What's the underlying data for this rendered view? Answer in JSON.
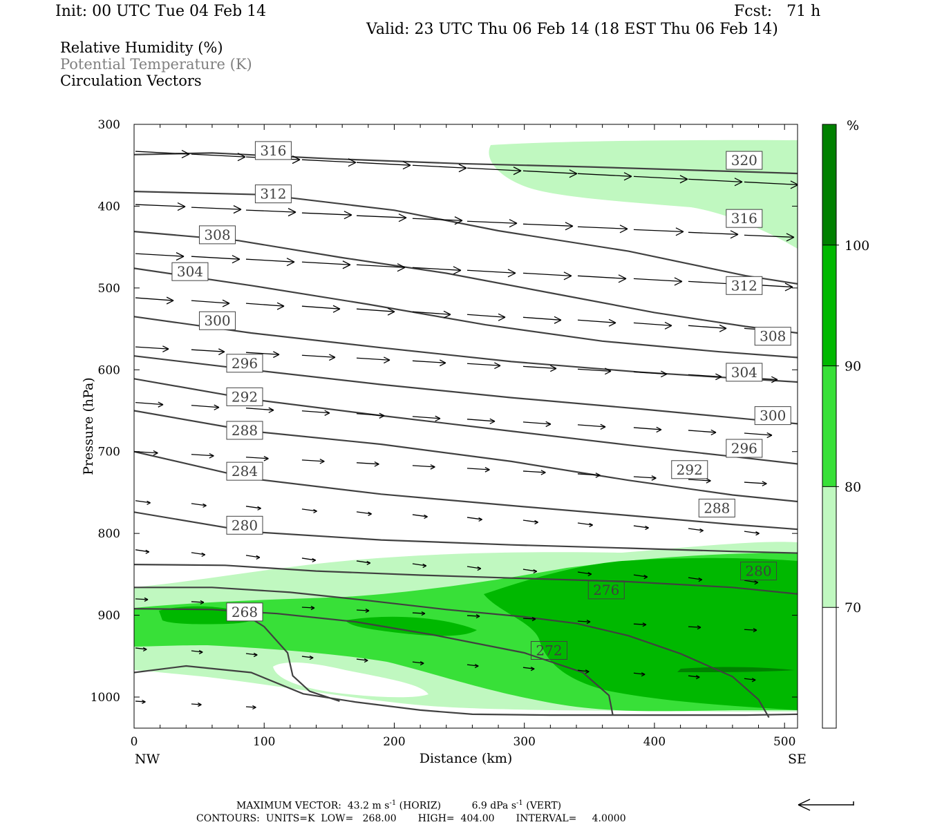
{
  "header": {
    "init": "Init: 00 UTC Tue 04 Feb 14",
    "fcst": "Fcst:   71 h",
    "valid": "Valid: 23 UTC Thu 06 Feb 14 (18 EST Thu 06 Feb 14)"
  },
  "legend": {
    "rh": "Relative Humidity (%)",
    "theta": "Potential Temperature (K)",
    "vectors": "Circulation Vectors"
  },
  "footer": {
    "maxvec_label": "MAXIMUM VECTOR:",
    "maxvec_h_val": "43.2 m s",
    "maxvec_h_sup": "-1",
    "maxvec_h_tag": "(HORIZ)",
    "maxvec_v_val": "6.9 dPa s",
    "maxvec_v_sup": "-1",
    "maxvec_v_tag": "(VERT)",
    "contours": "CONTOURS:  UNITS=K  LOW=   268.00       HIGH=  404.00       INTERVAL=     4.0000"
  },
  "colors": {
    "rh70": "#c0f8c0",
    "rh80": "#38e038",
    "rh90": "#00b800",
    "rh100": "#008000",
    "contour": "#404040",
    "grey_text": "#808080"
  },
  "chart_data": {
    "type": "cross-section",
    "xlabel": "Distance (km)",
    "ylabel": "Pressure (hPa)",
    "xlim": [
      0,
      510
    ],
    "ylim": [
      1038,
      300
    ],
    "x_ticks": [
      0,
      100,
      200,
      300,
      400,
      500
    ],
    "y_ticks": [
      300,
      400,
      500,
      600,
      700,
      800,
      900,
      1000
    ],
    "x_end_labels": {
      "left": "NW",
      "right": "SE"
    },
    "colorbar": {
      "unit": "%",
      "levels": [
        70,
        80,
        90,
        100
      ],
      "colors": [
        "#ffffff",
        "#c0f8c0",
        "#38e038",
        "#00b800",
        "#008000"
      ]
    },
    "contour_labels": [
      {
        "value": "316",
        "x": 107,
        "p": 332
      },
      {
        "value": "312",
        "x": 107,
        "p": 385
      },
      {
        "value": "308",
        "x": 64,
        "p": 435
      },
      {
        "value": "304",
        "x": 43,
        "p": 480
      },
      {
        "value": "300",
        "x": 64,
        "p": 540
      },
      {
        "value": "296",
        "x": 85,
        "p": 592
      },
      {
        "value": "292",
        "x": 85,
        "p": 633
      },
      {
        "value": "288",
        "x": 85,
        "p": 674
      },
      {
        "value": "284",
        "x": 85,
        "p": 724
      },
      {
        "value": "280",
        "x": 85,
        "p": 790
      },
      {
        "value": "268",
        "x": 85,
        "p": 896
      },
      {
        "value": "320",
        "x": 469,
        "p": 344
      },
      {
        "value": "316",
        "x": 469,
        "p": 415
      },
      {
        "value": "312",
        "x": 469,
        "p": 497
      },
      {
        "value": "308",
        "x": 491,
        "p": 559
      },
      {
        "value": "304",
        "x": 469,
        "p": 603
      },
      {
        "value": "300",
        "x": 491,
        "p": 656
      },
      {
        "value": "296",
        "x": 469,
        "p": 696
      },
      {
        "value": "292",
        "x": 427,
        "p": 722
      },
      {
        "value": "288",
        "x": 448,
        "p": 769
      },
      {
        "value": "280",
        "x": 480,
        "p": 846
      },
      {
        "value": "276",
        "x": 363,
        "p": 869
      },
      {
        "value": "272",
        "x": 319,
        "p": 943
      }
    ],
    "theta_contours": [
      {
        "value": 320,
        "points": [
          [
            0,
            337
          ],
          [
            60,
            335
          ],
          [
            150,
            342
          ],
          [
            250,
            348
          ],
          [
            350,
            352
          ],
          [
            450,
            357
          ],
          [
            510,
            360
          ]
        ]
      },
      {
        "value": 316,
        "points": [
          [
            0,
            382
          ],
          [
            100,
            386
          ],
          [
            200,
            405
          ],
          [
            280,
            430
          ],
          [
            380,
            455
          ],
          [
            470,
            485
          ],
          [
            510,
            495
          ]
        ]
      },
      {
        "value": 312,
        "points": [
          [
            0,
            431
          ],
          [
            80,
            442
          ],
          [
            160,
            463
          ],
          [
            240,
            482
          ],
          [
            320,
            506
          ],
          [
            400,
            530
          ],
          [
            470,
            547
          ],
          [
            510,
            555
          ]
        ]
      },
      {
        "value": 308,
        "points": [
          [
            0,
            476
          ],
          [
            90,
            497
          ],
          [
            180,
            520
          ],
          [
            270,
            545
          ],
          [
            360,
            565
          ],
          [
            450,
            578
          ],
          [
            510,
            585
          ]
        ]
      },
      {
        "value": 304,
        "points": [
          [
            0,
            535
          ],
          [
            90,
            555
          ],
          [
            190,
            573
          ],
          [
            290,
            590
          ],
          [
            390,
            603
          ],
          [
            470,
            611
          ],
          [
            510,
            615
          ]
        ]
      },
      {
        "value": 300,
        "points": [
          [
            0,
            583
          ],
          [
            90,
            600
          ],
          [
            190,
            618
          ],
          [
            290,
            634
          ],
          [
            390,
            648
          ],
          [
            470,
            660
          ],
          [
            510,
            666
          ]
        ]
      },
      {
        "value": 296,
        "points": [
          [
            0,
            611
          ],
          [
            90,
            636
          ],
          [
            190,
            656
          ],
          [
            290,
            675
          ],
          [
            380,
            692
          ],
          [
            460,
            706
          ],
          [
            510,
            715
          ]
        ]
      },
      {
        "value": 292,
        "points": [
          [
            0,
            650
          ],
          [
            90,
            675
          ],
          [
            190,
            691
          ],
          [
            290,
            712
          ],
          [
            380,
            735
          ],
          [
            460,
            753
          ],
          [
            510,
            761
          ]
        ]
      },
      {
        "value": 288,
        "points": [
          [
            0,
            700
          ],
          [
            90,
            733
          ],
          [
            190,
            752
          ],
          [
            290,
            766
          ],
          [
            380,
            778
          ],
          [
            460,
            789
          ],
          [
            510,
            795
          ]
        ]
      },
      {
        "value": 284,
        "points": [
          [
            0,
            774
          ],
          [
            90,
            798
          ],
          [
            190,
            808
          ],
          [
            290,
            814
          ],
          [
            380,
            818
          ],
          [
            460,
            822
          ],
          [
            510,
            824
          ]
        ]
      },
      {
        "value": 280,
        "points": [
          [
            0,
            838
          ],
          [
            70,
            839
          ],
          [
            140,
            846
          ],
          [
            220,
            851
          ],
          [
            300,
            855
          ],
          [
            380,
            859
          ],
          [
            460,
            866
          ],
          [
            510,
            874
          ]
        ]
      },
      {
        "value": 276,
        "points": [
          [
            0,
            866
          ],
          [
            60,
            866
          ],
          [
            120,
            872
          ],
          [
            180,
            882
          ],
          [
            240,
            893
          ],
          [
            300,
            902
          ],
          [
            340,
            910
          ],
          [
            380,
            925
          ],
          [
            420,
            947
          ],
          [
            460,
            975
          ],
          [
            480,
            1003
          ],
          [
            488,
            1025
          ]
        ]
      },
      {
        "value": 272,
        "points": [
          [
            0,
            892
          ],
          [
            60,
            893
          ],
          [
            110,
            898
          ],
          [
            170,
            908
          ],
          [
            230,
            924
          ],
          [
            300,
            946
          ],
          [
            345,
            970
          ],
          [
            365,
            998
          ],
          [
            368,
            1022
          ]
        ]
      },
      {
        "value": 268,
        "points": [
          [
            80,
            894
          ],
          [
            100,
            914
          ],
          [
            118,
            946
          ],
          [
            122,
            974
          ],
          [
            135,
            993
          ],
          [
            158,
            1005
          ]
        ]
      },
      {
        "value": "ground",
        "points": [
          [
            0,
            970
          ],
          [
            40,
            962
          ],
          [
            90,
            970
          ],
          [
            130,
            996
          ],
          [
            170,
            1006
          ],
          [
            220,
            1016
          ],
          [
            260,
            1021
          ],
          [
            320,
            1022
          ],
          [
            400,
            1022
          ],
          [
            470,
            1022
          ],
          [
            510,
            1021
          ]
        ]
      }
    ]
  }
}
